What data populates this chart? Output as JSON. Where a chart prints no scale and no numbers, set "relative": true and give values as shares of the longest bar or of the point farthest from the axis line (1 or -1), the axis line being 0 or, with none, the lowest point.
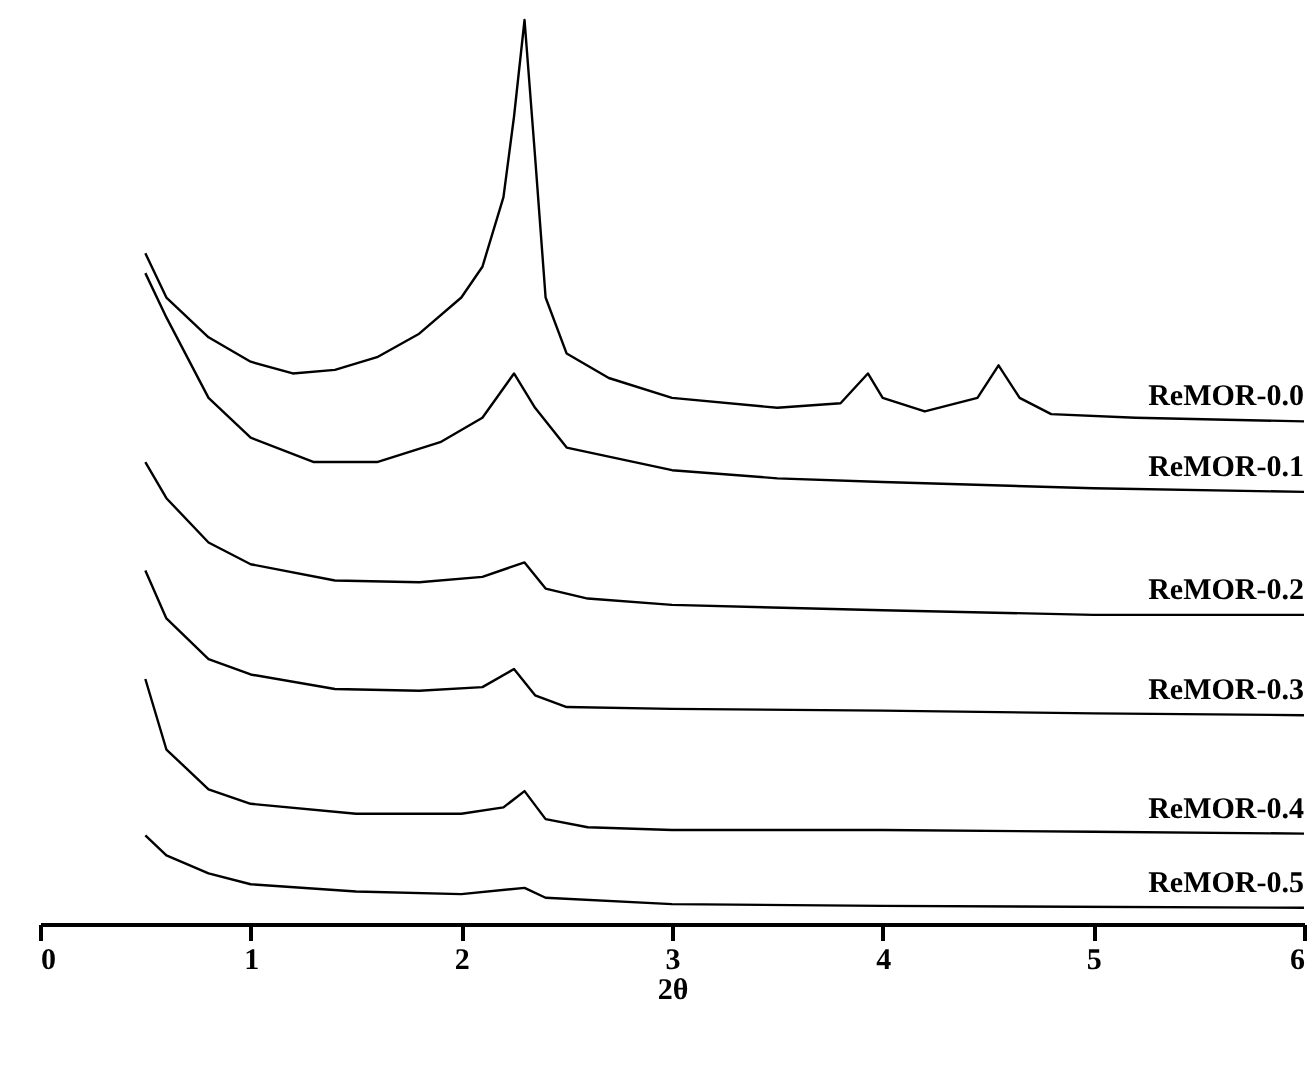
{
  "chart_data": {
    "type": "line",
    "xlabel": "2θ",
    "xlim": [
      0,
      6
    ],
    "xticks": [
      0,
      1,
      2,
      3,
      4,
      5,
      6
    ],
    "relative": true,
    "grid": false,
    "legend": false,
    "marker": "none",
    "line_style": "solid",
    "series": [
      {
        "name": "ReMOR-0.0",
        "color": "#000000",
        "x": [
          0.5,
          0.6,
          0.8,
          1.0,
          1.2,
          1.4,
          1.6,
          1.8,
          2.0,
          2.1,
          2.2,
          2.25,
          2.3,
          2.35,
          2.4,
          2.5,
          2.7,
          3.0,
          3.5,
          3.8,
          3.93,
          4.0,
          4.2,
          4.45,
          4.55,
          4.65,
          4.8,
          5.2,
          6.0
        ],
        "values": [
          0.742,
          0.693,
          0.649,
          0.622,
          0.609,
          0.613,
          0.627,
          0.653,
          0.693,
          0.727,
          0.804,
          0.893,
          1,
          0.849,
          0.693,
          0.631,
          0.604,
          0.582,
          0.571,
          0.576,
          0.609,
          0.582,
          0.567,
          0.582,
          0.618,
          0.582,
          0.564,
          0.56,
          0.556
        ]
      },
      {
        "name": "ReMOR-0.1",
        "color": "#000000",
        "x": [
          0.5,
          0.6,
          0.8,
          1.0,
          1.3,
          1.6,
          1.9,
          2.1,
          2.25,
          2.35,
          2.5,
          3.0,
          3.5,
          4.0,
          5.0,
          6.0
        ],
        "values": [
          0.72,
          0.671,
          0.582,
          0.538,
          0.511,
          0.511,
          0.533,
          0.56,
          0.609,
          0.571,
          0.527,
          0.502,
          0.493,
          0.489,
          0.482,
          0.478
        ]
      },
      {
        "name": "ReMOR-0.2",
        "color": "#000000",
        "x": [
          0.5,
          0.6,
          0.8,
          1.0,
          1.4,
          1.8,
          2.1,
          2.3,
          2.4,
          2.6,
          3.0,
          4.0,
          5.0,
          6.0
        ],
        "values": [
          0.511,
          0.471,
          0.422,
          0.398,
          0.38,
          0.378,
          0.384,
          0.4,
          0.371,
          0.36,
          0.353,
          0.347,
          0.342,
          0.342
        ]
      },
      {
        "name": "ReMOR-0.3",
        "color": "#000000",
        "x": [
          0.5,
          0.6,
          0.8,
          1.0,
          1.4,
          1.8,
          2.1,
          2.25,
          2.35,
          2.5,
          3.0,
          4.0,
          5.0,
          6.0
        ],
        "values": [
          0.391,
          0.338,
          0.293,
          0.276,
          0.26,
          0.258,
          0.262,
          0.282,
          0.253,
          0.24,
          0.238,
          0.236,
          0.233,
          0.231
        ]
      },
      {
        "name": "ReMOR-0.4",
        "color": "#000000",
        "x": [
          0.5,
          0.6,
          0.8,
          1.0,
          1.5,
          2.0,
          2.2,
          2.3,
          2.4,
          2.6,
          3.0,
          4.0,
          5.0,
          6.0
        ],
        "values": [
          0.271,
          0.193,
          0.149,
          0.133,
          0.122,
          0.122,
          0.129,
          0.147,
          0.116,
          0.107,
          0.104,
          0.104,
          0.102,
          0.1
        ]
      },
      {
        "name": "ReMOR-0.5",
        "color": "#000000",
        "x": [
          0.5,
          0.6,
          0.8,
          1.0,
          1.5,
          2.0,
          2.3,
          2.4,
          3.0,
          4.0,
          6.0
        ],
        "values": [
          0.098,
          0.076,
          0.056,
          0.044,
          0.036,
          0.033,
          0.04,
          0.029,
          0.022,
          0.02,
          0.018
        ]
      }
    ]
  }
}
